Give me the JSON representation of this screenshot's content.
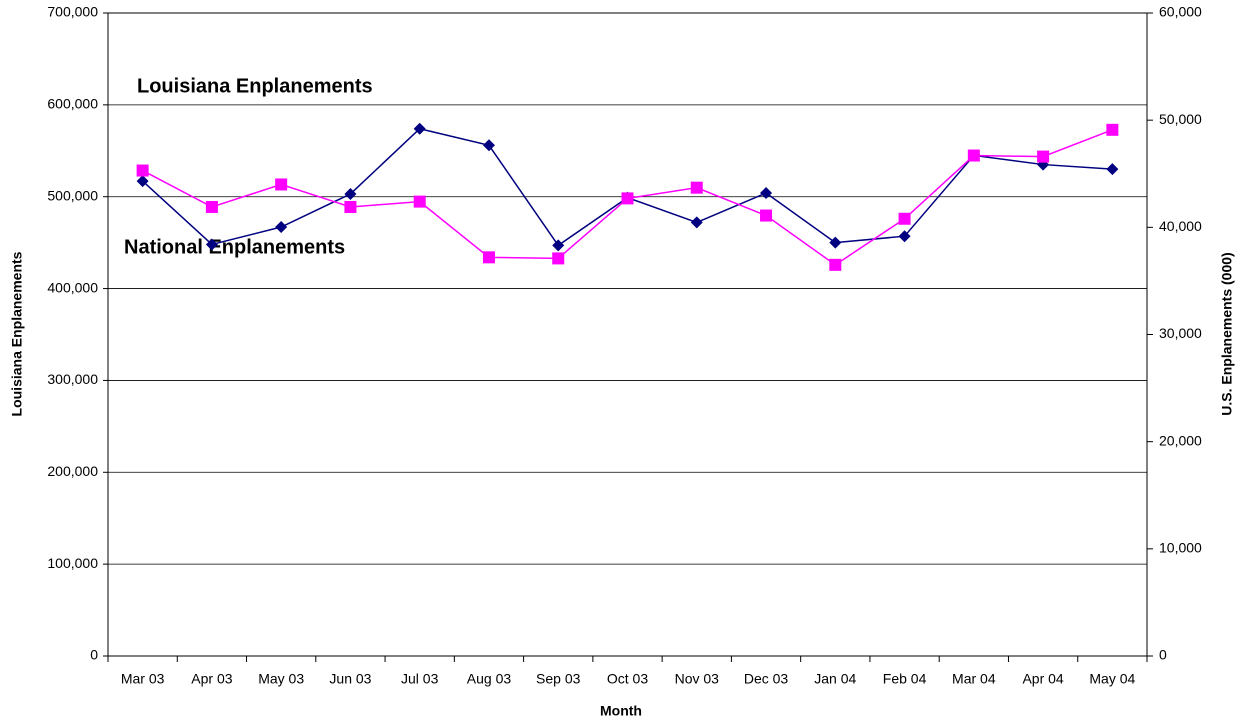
{
  "chart_data": {
    "type": "line",
    "x_label": "Month",
    "y_label": "Louisiana Enplanements",
    "y2_label": "U.S. Enplanements (000)",
    "categories": [
      "Mar 03",
      "Apr 03",
      "May 03",
      "Jun 03",
      "Jul 03",
      "Aug 03",
      "Sep 03",
      "Oct 03",
      "Nov 03",
      "Dec 03",
      "Jan 04",
      "Feb 04",
      "Mar 04",
      "Apr 04",
      "May 04"
    ],
    "series": [
      {
        "name": "Louisiana Enplanements",
        "color": "#000080",
        "marker": "diamond",
        "values": [
          517000,
          448000,
          467000,
          503000,
          574000,
          556000,
          447000,
          499000,
          472000,
          504000,
          450000,
          457000,
          545000,
          535000,
          530000
        ]
      },
      {
        "name": "National Enplanements",
        "color": "#ff00ff",
        "marker": "square",
        "axis": "y2",
        "values": [
          45300,
          41900,
          44000,
          41900,
          42400,
          37200,
          37100,
          42700,
          43700,
          41100,
          36500,
          40800,
          46700,
          46600,
          49100
        ]
      }
    ],
    "ylim": [
      0,
      700000
    ],
    "yticks": [
      0,
      {
        "value": 100000,
        "label": "100,000"
      },
      {
        "value": 200000,
        "label": "200,000"
      },
      {
        "value": 300000,
        "label": "300,000"
      },
      {
        "value": 400000,
        "label": "400,000"
      },
      {
        "value": 500000,
        "label": "500,000"
      },
      {
        "value": 600000,
        "label": "600,000"
      },
      {
        "value": 700000,
        "label": "700,000"
      }
    ],
    "y2lim": [
      0,
      60000
    ],
    "y2ticks": [
      0,
      {
        "value": 10000,
        "label": "10,000"
      },
      {
        "value": 20000,
        "label": "20,000"
      },
      {
        "value": 30000,
        "label": "30,000"
      },
      {
        "value": 40000,
        "label": "40,000"
      },
      {
        "value": 50000,
        "label": "50,000"
      },
      {
        "value": 60000,
        "label": "60,000"
      }
    ],
    "grid": true
  }
}
